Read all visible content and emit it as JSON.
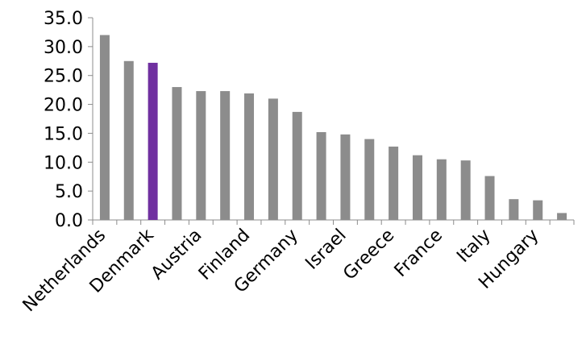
{
  "chart_data": {
    "type": "bar",
    "title": "",
    "xlabel": "",
    "ylabel": "",
    "ylim": [
      0,
      35
    ],
    "yticks": [
      "0.0",
      "5.0",
      "10.0",
      "15.0",
      "20.0",
      "25.0",
      "30.0",
      "35.0"
    ],
    "grid": false,
    "legend": "none",
    "colors": {
      "default": "#8c8c8c",
      "highlight": "#7030a0",
      "axis": "#8c8c8c"
    },
    "highlight_index": 2,
    "categories": [
      "Netherlands",
      "",
      "Denmark",
      "",
      "Austria",
      "",
      "Finland",
      "",
      "Germany",
      "",
      "Israel",
      "",
      "Greece",
      "",
      "France",
      "",
      "Italy",
      "",
      "Hungary",
      ""
    ],
    "values": [
      32.0,
      27.5,
      27.2,
      23.0,
      22.3,
      22.3,
      21.9,
      21.0,
      18.7,
      15.2,
      14.8,
      14.0,
      12.7,
      11.2,
      10.5,
      10.3,
      7.6,
      3.6,
      3.4,
      1.2
    ]
  }
}
